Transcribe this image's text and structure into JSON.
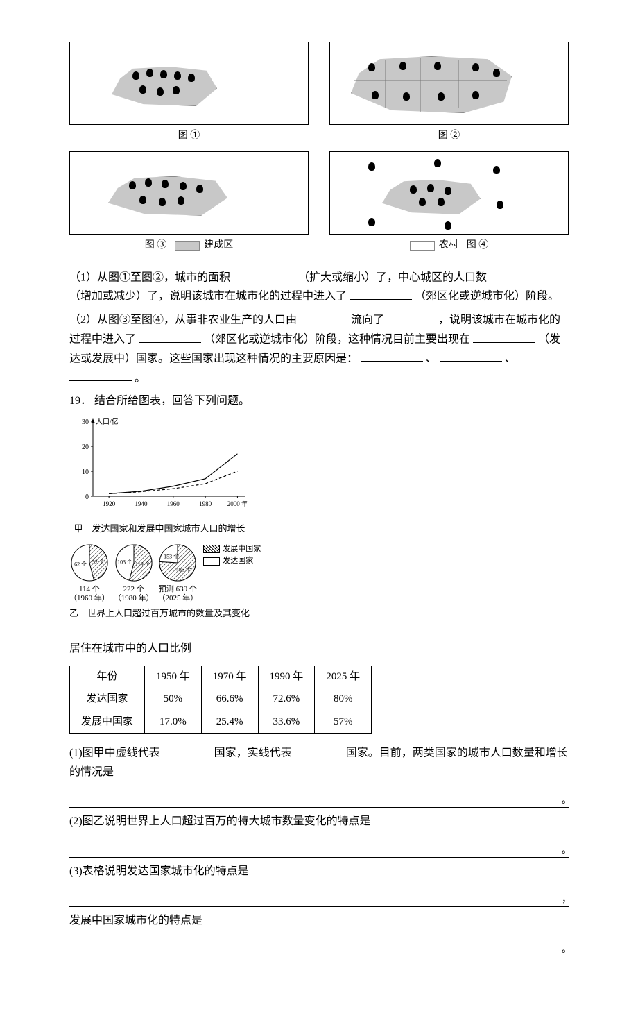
{
  "figures": {
    "cell1": {
      "caption": "图 ①"
    },
    "cell2": {
      "caption": "图 ②"
    },
    "cell3": {
      "caption": "图 ③"
    },
    "cell4": {
      "caption": "图 ④"
    },
    "legend_built": "建成区",
    "legend_rural": "农村"
  },
  "q1": {
    "p1_a": "（1）从图①至图②，城市的面积",
    "p1_b": "（扩大或缩小）了，中心城区的人口数",
    "p1_c": "（增加或减少）了，说明该城市在城市化的过程中进入了",
    "p1_d": "（郊区化或逆城市化）阶段。",
    "p2_a": "（2）从图③至图④，从事非农业生产的人口由",
    "p2_b": "流向了",
    "p2_c": "，说明该城市在城市化的过程中进入了",
    "p2_d": "（郊区化或逆城市化）阶段，这种情况目前主要出现在",
    "p2_e": "（发达或发展中）国家。这些国家出现这种情况的主要原因是：",
    "p2_f": "、",
    "p2_g": "、",
    "p2_h": "。"
  },
  "q19": {
    "number": "19．",
    "stem": "结合所给图表，回答下列问题。",
    "line_chart": {
      "type": "line",
      "y_label": "人口/亿",
      "y_ticks": [
        0,
        10,
        20,
        30
      ],
      "x_ticks": [
        "1920",
        "1940",
        "1960",
        "1980",
        "2000 年"
      ],
      "series": [
        {
          "name": "solid",
          "dash": "0",
          "points": [
            [
              1920,
              1
            ],
            [
              1940,
              2
            ],
            [
              1960,
              4
            ],
            [
              1980,
              7
            ],
            [
              2000,
              17
            ]
          ]
        },
        {
          "name": "dashed",
          "dash": "4 3",
          "points": [
            [
              1920,
              1
            ],
            [
              1940,
              1.8
            ],
            [
              1960,
              3
            ],
            [
              1980,
              5
            ],
            [
              2000,
              10
            ]
          ]
        }
      ],
      "xlim": [
        1910,
        2005
      ],
      "ylim": [
        0,
        30
      ],
      "axis_color": "#000000",
      "bg": "#ffffff",
      "caption": "甲　发达国家和发展中国家城市人口的增长"
    },
    "pies": {
      "items": [
        {
          "total": "114 个",
          "year": "（1960 年）",
          "inner_a": "52 个",
          "inner_b": "62 个",
          "dev_share": 0.46
        },
        {
          "total": "222 个",
          "year": "（1980 年）",
          "inner_a": "119 个",
          "inner_b": "103 个",
          "dev_share": 0.54
        },
        {
          "total": "预测 639 个",
          "year": "（2025 年）",
          "inner_a": "486 个",
          "inner_b": "153 个",
          "dev_share": 0.76
        }
      ],
      "legend_dev": "发展中国家",
      "legend_rich": "发达国家",
      "caption": "乙　世界上人口超过百万城市的数量及其变化",
      "hatch_color": "#000000",
      "plain_color": "#ffffff"
    },
    "table": {
      "title": "居住在城市中的人口比例",
      "columns": [
        "年份",
        "1950 年",
        "1970 年",
        "1990 年",
        "2025 年"
      ],
      "rows": [
        [
          "发达国家",
          "50%",
          "66.6%",
          "72.6%",
          "80%"
        ],
        [
          "发展中国家",
          "17.0%",
          "25.4%",
          "33.6%",
          "57%"
        ]
      ]
    },
    "sub1_a": "(1)图甲中虚线代表",
    "sub1_b": "国家，实线代表",
    "sub1_c": "国家。目前，两类国家的城市人口数量和增长的情况是",
    "sub2": "(2)图乙说明世界上人口超过百万的特大城市数量变化的特点是",
    "sub3_a": "(3)表格说明发达国家城市化的特点是",
    "sub3_b": "发展中国家城市化的特点是",
    "dot": "。",
    "comma": "，"
  }
}
